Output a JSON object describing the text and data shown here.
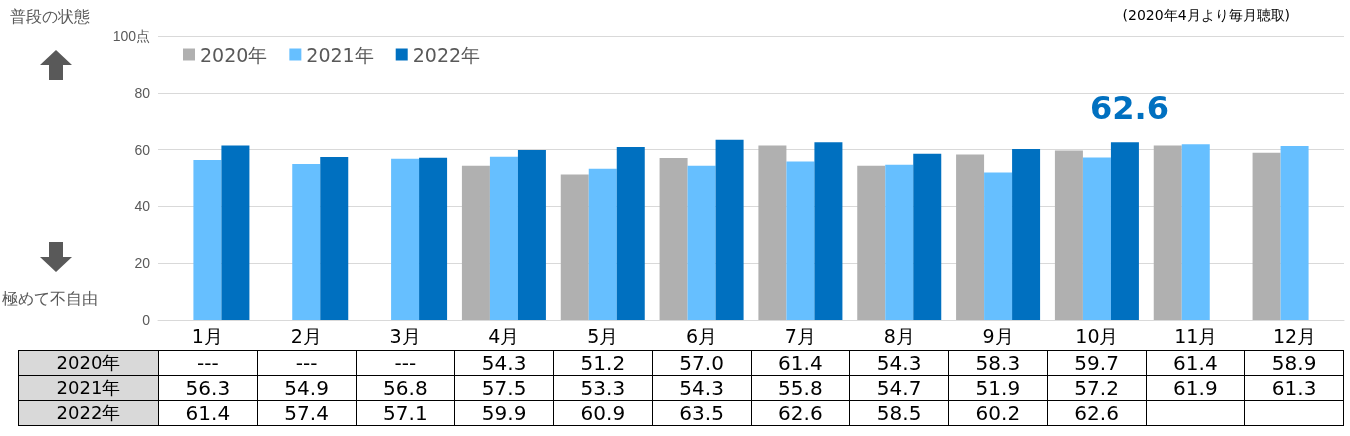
{
  "chart_data": {
    "type": "bar",
    "categories": [
      "1月",
      "2月",
      "3月",
      "4月",
      "5月",
      "6月",
      "7月",
      "8月",
      "9月",
      "10月",
      "11月",
      "12月"
    ],
    "series": [
      {
        "name": "2020年",
        "color": "#b0b0b0",
        "values": [
          null,
          null,
          null,
          54.3,
          51.2,
          57.0,
          61.4,
          54.3,
          58.3,
          59.7,
          61.4,
          58.9
        ],
        "value_labels": [
          "---",
          "---",
          "---",
          "54.3",
          "51.2",
          "57.0",
          "61.4",
          "54.3",
          "58.3",
          "59.7",
          "61.4",
          "58.9"
        ]
      },
      {
        "name": "2021年",
        "color": "#66bfff",
        "values": [
          56.3,
          54.9,
          56.8,
          57.5,
          53.3,
          54.3,
          55.8,
          54.7,
          51.9,
          57.2,
          61.9,
          61.3
        ],
        "value_labels": [
          "56.3",
          "54.9",
          "56.8",
          "57.5",
          "53.3",
          "54.3",
          "55.8",
          "54.7",
          "51.9",
          "57.2",
          "61.9",
          "61.3"
        ]
      },
      {
        "name": "2022年",
        "color": "#0070c0",
        "values": [
          61.4,
          57.4,
          57.1,
          59.9,
          60.9,
          63.5,
          62.6,
          58.5,
          60.2,
          62.6,
          null,
          null
        ],
        "value_labels": [
          "61.4",
          "57.4",
          "57.1",
          "59.9",
          "60.9",
          "63.5",
          "62.6",
          "58.5",
          "60.2",
          "62.6",
          null,
          null
        ]
      }
    ],
    "ylim": [
      0,
      100
    ],
    "yticks": [
      0,
      20,
      40,
      60,
      80,
      {
        "value": 100,
        "label": "100点"
      }
    ],
    "grid": "y",
    "legend": "top left",
    "annotations": [
      "(2020年4月より毎月聴取)",
      "普段の状態",
      "極めて不自由",
      "62.6"
    ]
  }
}
